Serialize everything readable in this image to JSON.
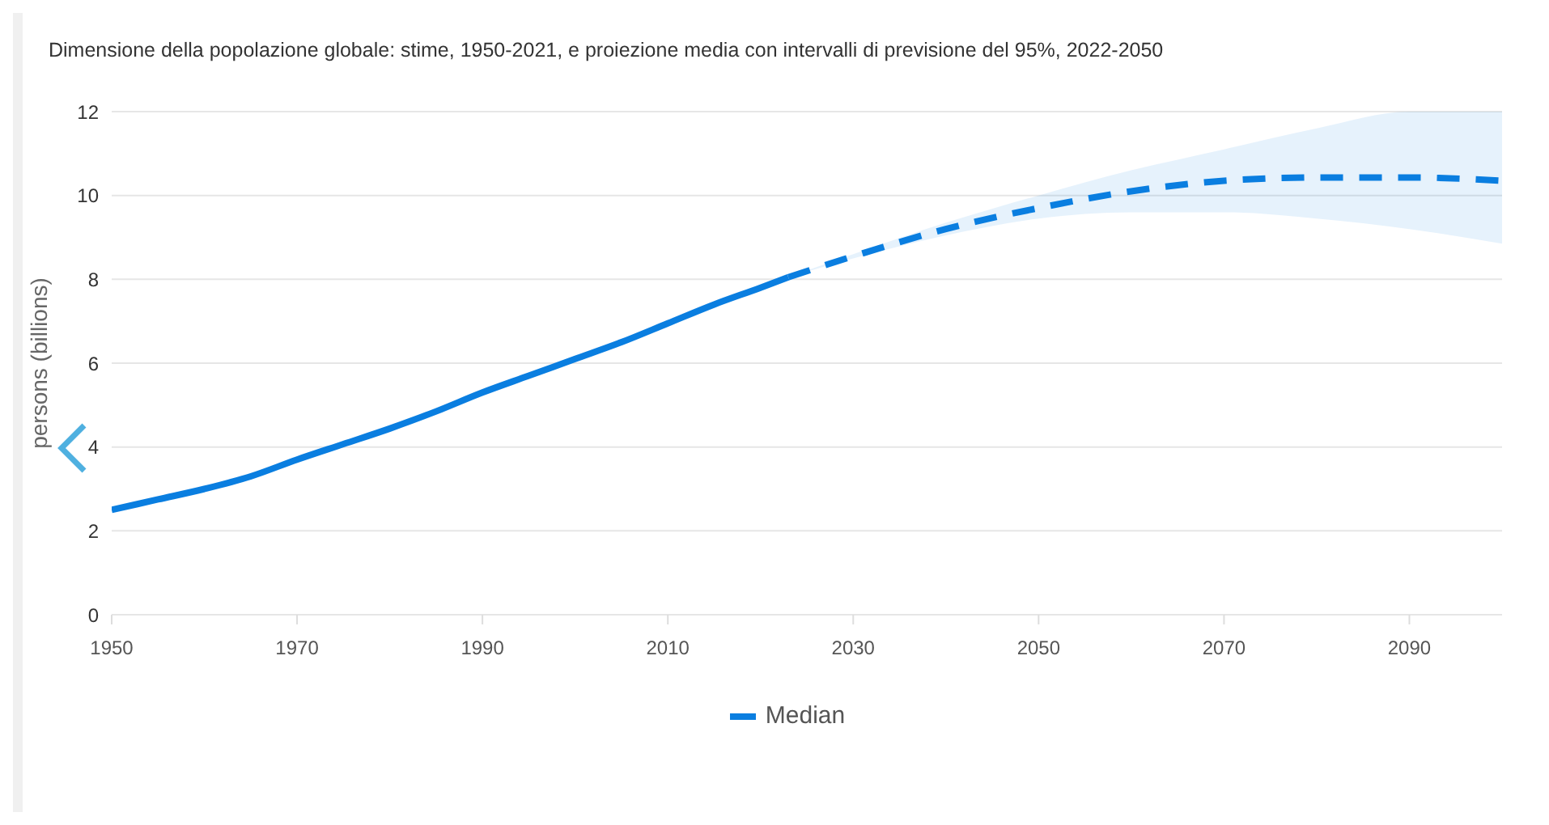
{
  "chart_data": {
    "type": "line",
    "title": "Dimensione della popolazione globale: stime, 1950-2021, e proiezione media con intervalli di previsione del 95%, 2022-2050",
    "ylabel": "persons (billions)",
    "xlim": [
      1950,
      2100
    ],
    "xticks": [
      1950,
      1970,
      1990,
      2010,
      2030,
      2050,
      2070,
      2090
    ],
    "ylim": [
      0,
      12
    ],
    "yticks": [
      0,
      2,
      4,
      6,
      8,
      10,
      12
    ],
    "grid": "y",
    "legend": "bottom",
    "marker": "none",
    "series": [
      {
        "color": "#0a7ee0",
        "line_style": "solid",
        "x": [
          1950,
          1955,
          1960,
          1965,
          1970,
          1975,
          1980,
          1985,
          1990,
          1995,
          2000,
          2005,
          2010,
          2015,
          2020,
          2023
        ],
        "values": [
          2.5,
          2.75,
          3.0,
          3.3,
          3.7,
          4.07,
          4.44,
          4.85,
          5.3,
          5.7,
          6.1,
          6.5,
          6.95,
          7.4,
          7.8,
          8.05
        ]
      },
      {
        "name": "Median",
        "color": "#0a7ee0",
        "line_style": "dashed",
        "x": [
          2023,
          2030,
          2040,
          2050,
          2060,
          2070,
          2080,
          2090,
          2100
        ],
        "values": [
          8.05,
          8.55,
          9.2,
          9.7,
          10.1,
          10.35,
          10.43,
          10.43,
          10.35
        ],
        "lower": [
          8.05,
          8.5,
          9.05,
          9.45,
          9.6,
          9.6,
          9.45,
          9.2,
          8.85
        ],
        "upper": [
          8.05,
          8.6,
          9.35,
          10.0,
          10.6,
          11.1,
          11.6,
          12,
          12
        ]
      }
    ]
  }
}
